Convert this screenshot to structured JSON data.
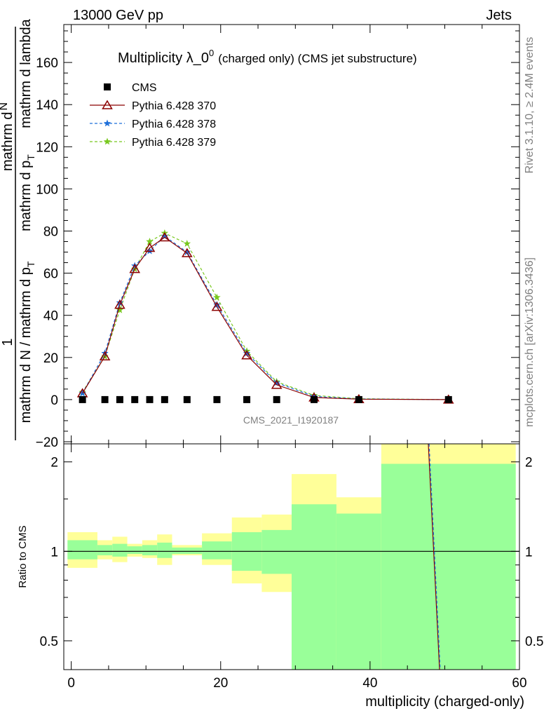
{
  "header": {
    "left": "13000 GeV pp",
    "right": "Jets"
  },
  "side_text": {
    "top": "Rivet 3.1.10, ≥ 2.4M events",
    "bottom": "mcplots.cern.ch [arXiv:1306.3436]"
  },
  "watermark": "CMS_2021_I1920187",
  "colors": {
    "cms": "#000000",
    "p370": "#8b0000",
    "p378": "#1e6fd9",
    "p379": "#78c81e",
    "band_inner": "#99ff99",
    "band_outer": "#ffff99"
  },
  "chart_data": [
    {
      "type": "scatter",
      "title_main": "Multiplicity λ_0",
      "title_sup": "0",
      "title_small": "(charged only) (CMS jet substructure)",
      "ylabel_prefix": "1",
      "ylabel_den": "mathrm d N / mathrm d p",
      "ylabel_den_sub": "T",
      "ylabel_num_parts": [
        "mathrm d",
        "N"
      ],
      "ylabel_num2": "mathrm d p",
      "ylabel_num2_sub": "T",
      "ylabel_num3": "mathrm d lambda",
      "xlim": [
        -1,
        60
      ],
      "ylim": [
        -21,
        178
      ],
      "yticks": [
        -20,
        0,
        20,
        40,
        60,
        80,
        100,
        120,
        140,
        160
      ],
      "ytick_labels": [
        "−20",
        "0",
        "20",
        "40",
        "60",
        "80",
        "100",
        "120",
        "140",
        "160"
      ],
      "legend_position": "top-left",
      "series": [
        {
          "name": "CMS",
          "marker": "square",
          "x": [
            1.5,
            4.5,
            6.5,
            8.5,
            10.5,
            12.5,
            15.5,
            19.5,
            23.5,
            27.5,
            32.5,
            38.5,
            50.5
          ],
          "y": [
            0,
            0,
            0,
            0,
            0,
            0,
            0,
            0,
            0,
            0,
            0,
            0,
            0
          ]
        },
        {
          "name": "Pythia 6.428 370",
          "marker": "triangle",
          "line": "solid",
          "x": [
            1.5,
            4.5,
            6.5,
            8.5,
            10.5,
            12.5,
            15.5,
            19.5,
            23.5,
            27.5,
            32.5,
            38.5,
            50.5
          ],
          "y": [
            3,
            20.5,
            45,
            62,
            72,
            77,
            69.5,
            44,
            21,
            7,
            1,
            0.2,
            0
          ]
        },
        {
          "name": "Pythia 6.428 378",
          "marker": "star",
          "line": "dashed",
          "x": [
            1.5,
            4.5,
            6.5,
            8.5,
            10.5,
            12.5,
            15.5,
            19.5,
            23.5,
            27.5,
            32.5,
            38.5,
            50.5
          ],
          "y": [
            3,
            22,
            46,
            63.5,
            70.5,
            77.5,
            70,
            45,
            22,
            8,
            1.5,
            0.3,
            0
          ]
        },
        {
          "name": "Pythia 6.428 379",
          "marker": "star",
          "line": "dashed",
          "x": [
            1.5,
            4.5,
            6.5,
            8.5,
            10.5,
            12.5,
            15.5,
            19.5,
            23.5,
            27.5,
            32.5,
            38.5,
            50.5
          ],
          "y": [
            3.5,
            20.5,
            42.5,
            62,
            75,
            79,
            74,
            48.5,
            23,
            8.5,
            2,
            0.4,
            0
          ]
        }
      ]
    },
    {
      "type": "area",
      "ylabel": "Ratio to CMS",
      "xlabel": "multiplicity (charged-only)",
      "xlim": [
        -1,
        60
      ],
      "xticks": [
        0,
        20,
        40,
        60
      ],
      "xtick_labels": [
        "0",
        "20",
        "40",
        "60"
      ],
      "ylim": [
        0.4,
        2.3
      ],
      "yticks": [
        0.5,
        1,
        2
      ],
      "ytick_labels": [
        "0.5",
        "1",
        "2"
      ],
      "bins": [
        {
          "x0": -0.5,
          "x1": 3.5,
          "inner": [
            0.94,
            1.09
          ],
          "outer": [
            0.88,
            1.16
          ]
        },
        {
          "x0": 3.5,
          "x1": 5.5,
          "inner": [
            0.97,
            1.05
          ],
          "outer": [
            0.94,
            1.09
          ]
        },
        {
          "x0": 5.5,
          "x1": 7.5,
          "inner": [
            0.96,
            1.06
          ],
          "outer": [
            0.92,
            1.12
          ]
        },
        {
          "x0": 7.5,
          "x1": 9.5,
          "inner": [
            0.98,
            1.04
          ],
          "outer": [
            0.96,
            1.06
          ]
        },
        {
          "x0": 9.5,
          "x1": 11.5,
          "inner": [
            0.97,
            1.05
          ],
          "outer": [
            0.95,
            1.09
          ]
        },
        {
          "x0": 11.5,
          "x1": 13.5,
          "inner": [
            0.95,
            1.07
          ],
          "outer": [
            0.9,
            1.14
          ]
        },
        {
          "x0": 13.5,
          "x1": 17.5,
          "inner": [
            0.98,
            1.03
          ],
          "outer": [
            0.97,
            1.05
          ]
        },
        {
          "x0": 17.5,
          "x1": 21.5,
          "inner": [
            0.94,
            1.08
          ],
          "outer": [
            0.9,
            1.15
          ]
        },
        {
          "x0": 21.5,
          "x1": 25.5,
          "inner": [
            0.86,
            1.16
          ],
          "outer": [
            0.78,
            1.3
          ]
        },
        {
          "x0": 25.5,
          "x1": 29.5,
          "inner": [
            0.84,
            1.18
          ],
          "outer": [
            0.73,
            1.33
          ]
        },
        {
          "x0": 29.5,
          "x1": 35.5,
          "inner": [
            0.4,
            1.44
          ],
          "outer": [
            0.4,
            1.82
          ]
        },
        {
          "x0": 35.5,
          "x1": 41.5,
          "inner": [
            0.4,
            1.34
          ],
          "outer": [
            0.4,
            1.52
          ]
        },
        {
          "x0": 41.5,
          "x1": 59.5,
          "inner": [
            0.4,
            1.97
          ],
          "outer": [
            0.4,
            2.3
          ]
        }
      ],
      "ratio_lines": [
        {
          "name": "Pythia 6.428 370",
          "points": [
            [
              47.8,
              2.3
            ],
            [
              49.3,
              0.4
            ]
          ]
        },
        {
          "name": "Pythia 6.428 378",
          "points": [
            [
              47.9,
              2.3
            ],
            [
              49.4,
              0.4
            ]
          ]
        }
      ]
    }
  ]
}
